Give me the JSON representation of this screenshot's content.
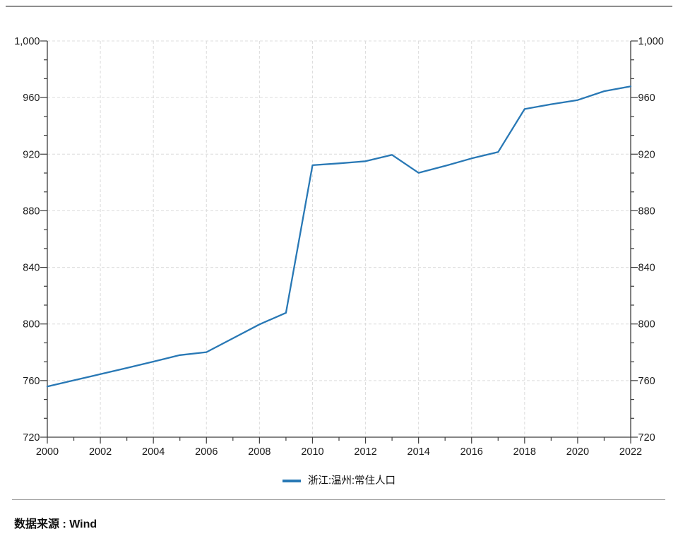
{
  "footer": {
    "source": "数据来源 : Wind"
  },
  "chart_data": {
    "type": "line",
    "title": "",
    "xlabel": "",
    "ylabel": "",
    "x": [
      2000,
      2001,
      2002,
      2003,
      2004,
      2005,
      2006,
      2007,
      2008,
      2009,
      2010,
      2011,
      2012,
      2013,
      2014,
      2015,
      2016,
      2017,
      2018,
      2019,
      2020,
      2021,
      2022
    ],
    "series": [
      {
        "name": "浙江:温州:常住人口",
        "values": [
          755.8,
          760.2,
          764.5,
          768.9,
          773.4,
          778.0,
          780.1,
          789.9,
          799.7,
          807.9,
          912.2,
          913.5,
          915.0,
          919.5,
          906.8,
          911.7,
          917.0,
          921.5,
          951.9,
          955.3,
          958.2,
          964.5,
          967.9
        ]
      }
    ],
    "xlim": [
      2000,
      2022
    ],
    "ylim": [
      720,
      1000
    ],
    "xtick_step": 2,
    "x_minor_step": 1,
    "ytick_step": 40,
    "y_minor_divisions": 3,
    "x_tick_labels": [
      "2000",
      "2002",
      "2004",
      "2006",
      "2008",
      "2010",
      "2012",
      "2014",
      "2016",
      "2018",
      "2020",
      "2022"
    ],
    "y_tick_labels": [
      "720",
      "760",
      "800",
      "840",
      "880",
      "920",
      "960",
      "1,000"
    ],
    "grid": "dashed",
    "legend_position": "bottom-center",
    "colors": {
      "line": "#2878b5",
      "axis": "#3d3d3d",
      "grid": "#dcdcdc",
      "label": "#1a1a1a",
      "divider_top": "#8e8e8e",
      "divider_bottom": "#9a9a9a"
    }
  }
}
